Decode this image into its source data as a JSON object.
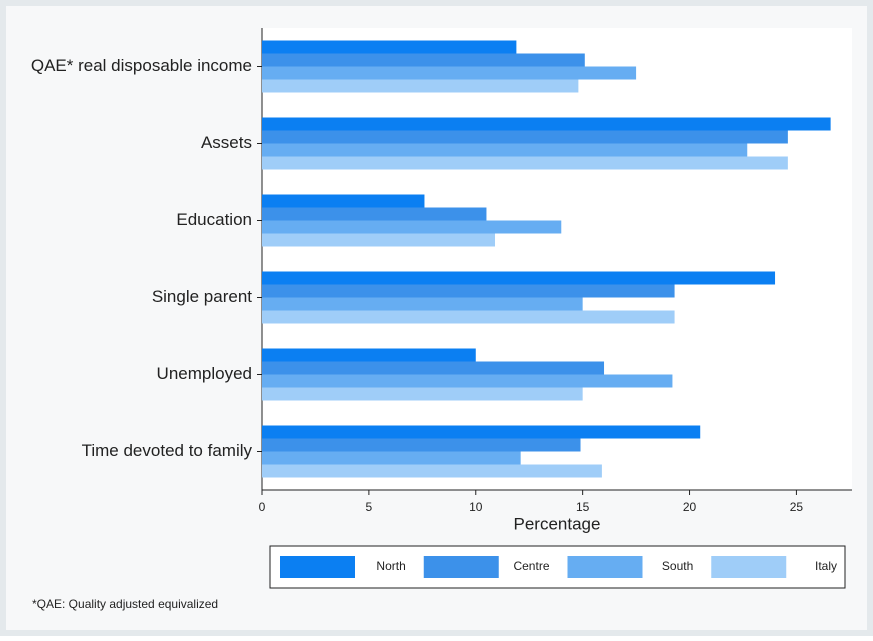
{
  "chart_data": {
    "type": "bar",
    "orientation": "horizontal",
    "categories": [
      "QAE* real disposable income",
      "Assets",
      "Education",
      "Single parent",
      "Unemployed",
      "Time devoted to family"
    ],
    "series": [
      {
        "name": "North",
        "color": "#0b7ff2",
        "values": [
          11.9,
          26.6,
          7.6,
          24.0,
          10.0,
          20.5
        ]
      },
      {
        "name": "Centre",
        "color": "#3c91ea",
        "values": [
          15.1,
          24.6,
          10.5,
          19.3,
          16.0,
          14.9
        ]
      },
      {
        "name": "South",
        "color": "#66adf2",
        "values": [
          17.5,
          22.7,
          14.0,
          15.0,
          19.2,
          12.1
        ]
      },
      {
        "name": "Italy",
        "color": "#9fcdf8",
        "values": [
          14.8,
          24.6,
          10.9,
          19.3,
          15.0,
          15.9
        ]
      }
    ],
    "xlabel": "Percentage",
    "xlim": [
      0,
      27.6
    ],
    "xticks": [
      0,
      5,
      10,
      15,
      20,
      25
    ],
    "legend": "bottom",
    "footnote": "*QAE: Quality adjusted equivalized"
  }
}
